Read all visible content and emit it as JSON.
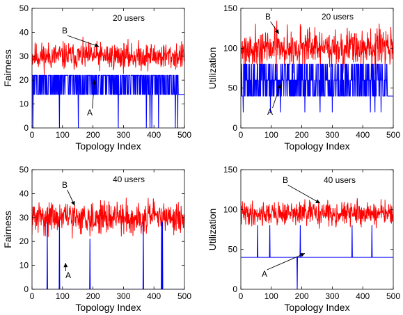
{
  "chart_data": [
    {
      "type": "line",
      "ylabel": "Fairness",
      "xlabel": "Topology Index",
      "xlim": [
        0,
        500
      ],
      "ylim": [
        0,
        50
      ],
      "xticks": [
        "0",
        "100",
        "200",
        "300",
        "400",
        "500"
      ],
      "yticks": [
        "0",
        "10",
        "20",
        "30",
        "40",
        "50"
      ],
      "annotation": "20 users",
      "markers": [
        {
          "label": "A",
          "target_x": 205,
          "target_y": 20
        },
        {
          "label": "B",
          "target_x": 220,
          "target_y": 34
        }
      ],
      "series": [
        {
          "color": "#ff0000",
          "style": "noisy",
          "mean": 30,
          "amplitude": 3.5,
          "n": 500,
          "seed": 11
        },
        {
          "color": "#0000ff",
          "style": "discrete",
          "levels": [
            14,
            22
          ],
          "base": 14,
          "p_alt": 0.55,
          "alt_region": [
            0,
            480
          ],
          "drops": [
            3,
            90,
            152,
            283,
            375,
            387,
            393,
            415,
            470,
            478
          ],
          "n": 500,
          "seed": 12
        }
      ]
    },
    {
      "type": "line",
      "ylabel": "Utilization",
      "xlabel": "Topology Index",
      "xlim": [
        0,
        500
      ],
      "ylim": [
        0,
        150
      ],
      "xticks": [
        "0",
        "100",
        "200",
        "300",
        "400",
        "500"
      ],
      "yticks": [
        "0",
        "50",
        "100",
        "150"
      ],
      "annotation": "20 users",
      "markers": [
        {
          "label": "A",
          "target_x": 130,
          "target_y": 55
        },
        {
          "label": "B",
          "target_x": 125,
          "target_y": 118
        }
      ],
      "series": [
        {
          "color": "#ff0000",
          "style": "noisy",
          "mean": 100,
          "amplitude": 15,
          "n": 500,
          "seed": 21
        },
        {
          "color": "#0000ff",
          "style": "discrete",
          "levels": [
            40,
            60,
            80
          ],
          "base": 40,
          "p_alt": 0.6,
          "alt_region": [
            0,
            480
          ],
          "drops": [
            8,
            97,
            130,
            210,
            260,
            300,
            425,
            440,
            460
          ],
          "drop_value": 20,
          "n": 500,
          "seed": 22
        }
      ]
    },
    {
      "type": "line",
      "ylabel": "Fairness",
      "xlabel": "Topology Index",
      "xlim": [
        0,
        500
      ],
      "ylim": [
        0,
        50
      ],
      "xticks": [
        "0",
        "100",
        "200",
        "300",
        "400",
        "500"
      ],
      "yticks": [
        "0",
        "10",
        "20",
        "30",
        "40",
        "50"
      ],
      "annotation": "40 users",
      "markers": [
        {
          "label": "A",
          "target_x": 110,
          "target_y": 11
        },
        {
          "label": "B",
          "target_x": 140,
          "target_y": 35
        }
      ],
      "series": [
        {
          "color": "#ff0000",
          "style": "noisy",
          "mean": 30,
          "amplitude": 4,
          "n": 500,
          "seed": 31
        },
        {
          "color": "#0000ff",
          "style": "spikes",
          "base": 0,
          "spikes": [
            [
              50,
              28
            ],
            [
              90,
              29
            ],
            [
              190,
              21
            ],
            [
              365,
              28
            ],
            [
              425,
              29
            ],
            [
              428,
              28
            ]
          ]
        }
      ]
    },
    {
      "type": "line",
      "ylabel": "Utilization",
      "xlabel": "Topology Index",
      "xlim": [
        0,
        500
      ],
      "ylim": [
        0,
        150
      ],
      "xticks": [
        "0",
        "100",
        "200",
        "300",
        "400",
        "500"
      ],
      "yticks": [
        "0",
        "50",
        "100",
        "150"
      ],
      "annotation": "40 users",
      "markers": [
        {
          "label": "A",
          "target_x": 210,
          "target_y": 45
        },
        {
          "label": "B",
          "target_x": 260,
          "target_y": 108
        }
      ],
      "series": [
        {
          "color": "#ff0000",
          "style": "noisy",
          "mean": 95,
          "amplitude": 9,
          "n": 500,
          "seed": 41
        },
        {
          "color": "#0000ff",
          "style": "spikes",
          "base": 40,
          "spikes": [
            [
              55,
              80
            ],
            [
              95,
              80
            ],
            [
              185,
              0
            ],
            [
              195,
              80
            ],
            [
              365,
              80
            ],
            [
              430,
              80
            ]
          ]
        }
      ]
    }
  ]
}
